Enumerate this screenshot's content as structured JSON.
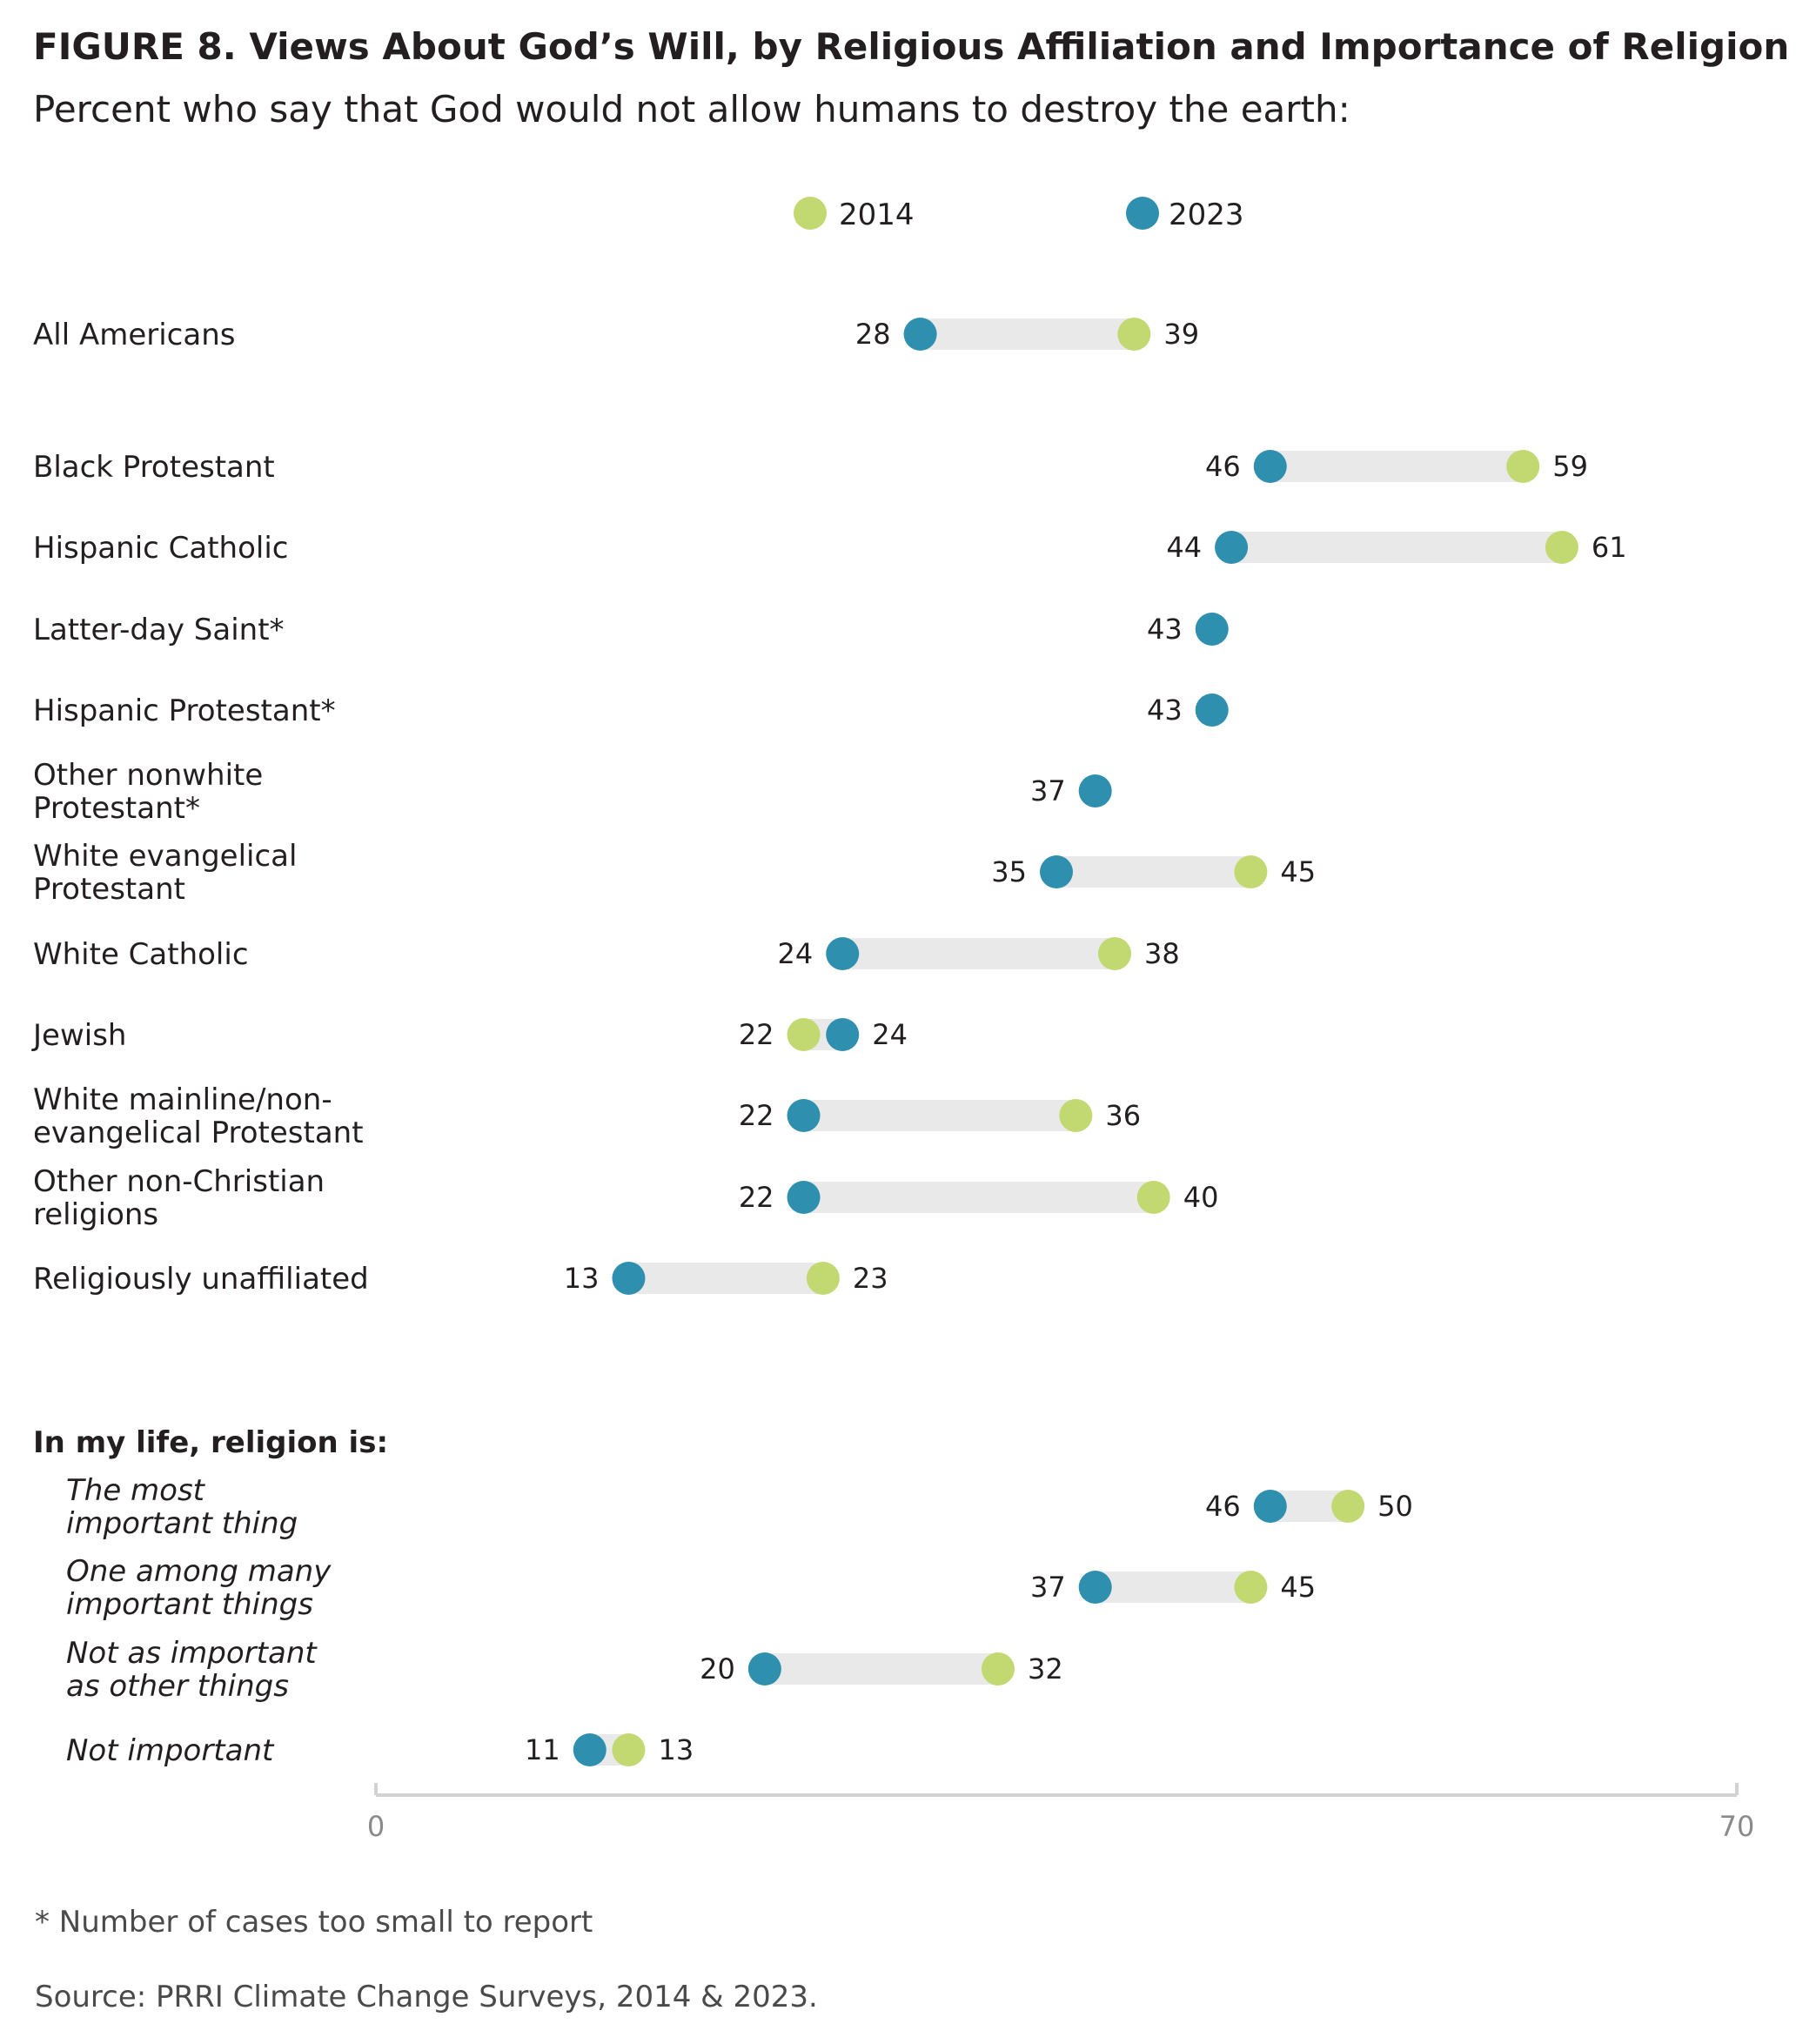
{
  "title": "FIGURE 8. Views About God’s Will, by Religious Affiliation and Importance of Religion",
  "subtitle": "Percent who say that God would not allow humans to destroy the earth:",
  "footnote": "* Number of cases too small to report",
  "source": "Source: PRRI Climate Change Surveys, 2014 & 2023.",
  "colors": {
    "series_2014": "#c2d870",
    "series_2023": "#2e8fae",
    "range_bar": "#e8e9e8",
    "axis": "#d2d2d2"
  },
  "chart_data": {
    "type": "scatter",
    "subtype": "dumbbell",
    "xlim": [
      0,
      70
    ],
    "x_ticks": [
      "0",
      "70"
    ],
    "legend": {
      "placement": "top",
      "entries": [
        "2014",
        "2023"
      ]
    },
    "series_names": [
      "2014",
      "2023"
    ],
    "section_heading": "In my life, religion is:",
    "categories": [
      {
        "label": [
          "All Americans"
        ],
        "italic": false,
        "v2014": 39,
        "v2023": 28
      },
      {
        "label": [
          "Black Protestant"
        ],
        "italic": false,
        "v2014": 59,
        "v2023": 46
      },
      {
        "label": [
          "Hispanic Catholic"
        ],
        "italic": false,
        "v2014": 61,
        "v2023": 44
      },
      {
        "label": [
          "Latter-day Saint*"
        ],
        "italic": false,
        "v2014": null,
        "v2023": 43
      },
      {
        "label": [
          "Hispanic Protestant*"
        ],
        "italic": false,
        "v2014": null,
        "v2023": 43
      },
      {
        "label": [
          "Other nonwhite",
          "Protestant*"
        ],
        "italic": false,
        "v2014": null,
        "v2023": 37
      },
      {
        "label": [
          "White evangelical",
          "Protestant"
        ],
        "italic": false,
        "v2014": 45,
        "v2023": 35
      },
      {
        "label": [
          "White Catholic"
        ],
        "italic": false,
        "v2014": 38,
        "v2023": 24
      },
      {
        "label": [
          "Jewish"
        ],
        "italic": false,
        "v2014": 22,
        "v2023": 24
      },
      {
        "label": [
          "White mainline/non-",
          "evangelical Protestant"
        ],
        "italic": false,
        "v2014": 36,
        "v2023": 22
      },
      {
        "label": [
          "Other non-Christian",
          "religions"
        ],
        "italic": false,
        "v2014": 40,
        "v2023": 22
      },
      {
        "label": [
          "Religiously unaffiliated"
        ],
        "italic": false,
        "v2014": 23,
        "v2023": 13
      },
      {
        "label": [
          "The most",
          "important thing"
        ],
        "italic": true,
        "v2014": 50,
        "v2023": 46
      },
      {
        "label": [
          "One among many",
          "important things"
        ],
        "italic": true,
        "v2014": 45,
        "v2023": 37
      },
      {
        "label": [
          "Not as important",
          "as other things"
        ],
        "italic": true,
        "v2014": 32,
        "v2023": 20
      },
      {
        "label": [
          "Not important"
        ],
        "italic": true,
        "v2014": 13,
        "v2023": 11
      }
    ]
  }
}
